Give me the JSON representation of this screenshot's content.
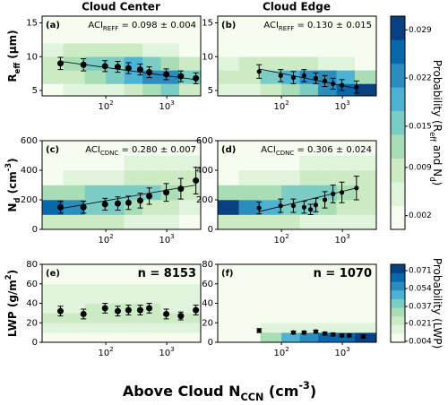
{
  "figure": {
    "column_titles": [
      "Cloud Center",
      "Cloud Edge"
    ],
    "xlabel": [
      "Above Cloud N",
      {
        "text": "CCN",
        "shift": "sub"
      },
      " (cm",
      {
        "text": "-3",
        "shift": "super"
      },
      ")"
    ],
    "colormap": [
      "#f7fcf0",
      "#e0f3db",
      "#ccebc5",
      "#a8ddb5",
      "#7bccc4",
      "#4eb3d3",
      "#2b8cbe",
      "#0868ac",
      "#084081"
    ]
  },
  "chart_data": [
    {
      "type": "binned_scatter",
      "label": "(a)",
      "annotation": [
        "ACI",
        {
          "text": "REFF",
          "shift": "sub"
        },
        " = 0.098 ± 0.004"
      ],
      "ylabel": [
        "R",
        {
          "text": "eff",
          "shift": "sub"
        },
        " (μm)"
      ],
      "xscale": "log",
      "xlim": [
        9,
        3600
      ],
      "xticks": [
        {
          "value": 100,
          "label": [
            "10",
            {
              "text": "2",
              "shift": "super"
            }
          ]
        },
        {
          "value": 1000,
          "label": [
            "10",
            {
              "text": "3",
              "shift": "super"
            }
          ]
        }
      ],
      "ylim": [
        4.2,
        16
      ],
      "yticks": [
        5,
        10,
        15
      ],
      "clim": [
        0,
        0.031
      ],
      "xbins": [
        9,
        20,
        45,
        100,
        200,
        400,
        800,
        1600,
        3600
      ],
      "ybins": [
        4.2,
        6,
        8,
        10,
        12,
        14,
        16
      ],
      "z": [
        [
          0.003,
          0.004,
          0.004,
          0.006,
          0.009,
          0.012,
          0.014,
          0.01
        ],
        [
          0.008,
          0.01,
          0.012,
          0.016,
          0.02,
          0.024,
          0.022,
          0.015
        ],
        [
          0.01,
          0.012,
          0.014,
          0.017,
          0.018,
          0.016,
          0.012,
          0.008
        ],
        [
          0.006,
          0.007,
          0.008,
          0.008,
          0.007,
          0.005,
          0.004,
          0.003
        ],
        [
          0.003,
          0.003,
          0.003,
          0.003,
          0.002,
          0.002,
          0.002,
          0.002
        ],
        [
          0.001,
          0.001,
          0.001,
          0.001,
          0.001,
          0.001,
          0.001,
          0.001
        ]
      ],
      "x": [
        18,
        43,
        97,
        157,
        235,
        366,
        515,
        980,
        1700,
        3000
      ],
      "values": [
        9.0,
        8.8,
        8.6,
        8.5,
        8.3,
        8.1,
        7.7,
        7.4,
        7.1,
        6.8
      ],
      "errors": [
        0.9,
        0.9,
        0.8,
        0.8,
        0.8,
        0.8,
        0.8,
        0.8,
        0.8,
        0.8
      ],
      "fit": {
        "x": [
          18,
          3000
        ],
        "y": [
          9.3,
          6.6
        ]
      }
    },
    {
      "type": "binned_scatter",
      "label": "(b)",
      "annotation": [
        "ACI",
        {
          "text": "REFF",
          "shift": "sub"
        },
        " = 0.130 ± 0.015"
      ],
      "xscale": "log",
      "xlim": [
        9,
        3600
      ],
      "xticks": [
        {
          "value": 100,
          "label": [
            "10",
            {
              "text": "2",
              "shift": "super"
            }
          ]
        },
        {
          "value": 1000,
          "label": [
            "10",
            {
              "text": "3",
              "shift": "super"
            }
          ]
        }
      ],
      "ylim": [
        4.2,
        16
      ],
      "yticks": [
        5,
        10,
        15
      ],
      "clim": [
        0,
        0.031
      ],
      "xbins": [
        9,
        20,
        45,
        100,
        200,
        400,
        800,
        1600,
        3600
      ],
      "ybins": [
        4.2,
        6,
        8,
        10,
        12,
        14,
        16
      ],
      "z": [
        [
          0.004,
          0.005,
          0.008,
          0.012,
          0.016,
          0.022,
          0.026,
          0.029
        ],
        [
          0.008,
          0.01,
          0.014,
          0.02,
          0.024,
          0.022,
          0.018,
          0.012
        ],
        [
          0.006,
          0.007,
          0.008,
          0.009,
          0.008,
          0.006,
          0.004,
          0.003
        ],
        [
          0.003,
          0.003,
          0.003,
          0.003,
          0.002,
          0.002,
          0.002,
          0.002
        ],
        [
          0.001,
          0.001,
          0.001,
          0.001,
          0.001,
          0.001,
          0.001,
          0.001
        ],
        [
          0.001,
          0.001,
          0.001,
          0.001,
          0.001,
          0.001,
          0.001,
          0.001
        ]
      ],
      "x": [
        43,
        97,
        157,
        235,
        366,
        515,
        700,
        980,
        1700
      ],
      "values": [
        7.8,
        7.2,
        6.9,
        7.2,
        6.8,
        6.4,
        6.0,
        5.8,
        5.5
      ],
      "errors": [
        1.0,
        0.9,
        0.9,
        0.9,
        0.8,
        0.8,
        0.8,
        0.8,
        0.9
      ],
      "fit": {
        "x": [
          43,
          1700
        ],
        "y": [
          8.2,
          5.3
        ]
      }
    },
    {
      "type": "binned_scatter",
      "label": "(c)",
      "annotation": [
        "ACI",
        {
          "text": "CDNC",
          "shift": "sub"
        },
        " = 0.280 ± 0.007"
      ],
      "ylabel": [
        "N",
        {
          "text": "d",
          "shift": "sub"
        },
        " (cm",
        {
          "text": "-3",
          "shift": "super"
        },
        ")"
      ],
      "xscale": "log",
      "xlim": [
        9,
        3600
      ],
      "xticks": [
        {
          "value": 100,
          "label": [
            "10",
            {
              "text": "2",
              "shift": "super"
            }
          ]
        },
        {
          "value": 1000,
          "label": [
            "10",
            {
              "text": "3",
              "shift": "super"
            }
          ]
        }
      ],
      "ylim": [
        0,
        600
      ],
      "yticks": [
        0,
        200,
        400,
        600
      ],
      "clim": [
        0,
        0.031
      ],
      "xbins": [
        9,
        20,
        45,
        100,
        200,
        400,
        800,
        1600,
        3600
      ],
      "ybins": [
        0,
        100,
        200,
        300,
        400,
        500,
        600
      ],
      "z": [
        [
          0.008,
          0.008,
          0.007,
          0.007,
          0.006,
          0.005,
          0.004,
          0.003
        ],
        [
          0.026,
          0.022,
          0.016,
          0.014,
          0.012,
          0.01,
          0.009,
          0.006
        ],
        [
          0.012,
          0.013,
          0.014,
          0.015,
          0.016,
          0.014,
          0.012,
          0.008
        ],
        [
          0.003,
          0.004,
          0.004,
          0.006,
          0.008,
          0.01,
          0.01,
          0.008
        ],
        [
          0.002,
          0.002,
          0.002,
          0.003,
          0.004,
          0.005,
          0.006,
          0.005
        ],
        [
          0.001,
          0.001,
          0.001,
          0.001,
          0.001,
          0.002,
          0.002,
          0.002
        ]
      ],
      "x": [
        18,
        43,
        97,
        157,
        235,
        366,
        515,
        980,
        1700,
        3000
      ],
      "values": [
        150,
        150,
        170,
        175,
        180,
        195,
        225,
        250,
        275,
        330
      ],
      "errors": [
        40,
        40,
        40,
        45,
        45,
        50,
        55,
        60,
        70,
        90
      ],
      "fit": {
        "x": [
          18,
          3000
        ],
        "y": [
          140,
          300
        ]
      }
    },
    {
      "type": "binned_scatter",
      "label": "(d)",
      "annotation": [
        "ACI",
        {
          "text": "CDNC",
          "shift": "sub"
        },
        " = 0.306 ± 0.024"
      ],
      "xscale": "log",
      "xlim": [
        9,
        3600
      ],
      "xticks": [
        {
          "value": 100,
          "label": [
            "10",
            {
              "text": "2",
              "shift": "super"
            }
          ]
        },
        {
          "value": 1000,
          "label": [
            "10",
            {
              "text": "3",
              "shift": "super"
            }
          ]
        }
      ],
      "ylim": [
        0,
        600
      ],
      "yticks": [
        0,
        200,
        400,
        600
      ],
      "clim": [
        0,
        0.031
      ],
      "xbins": [
        9,
        20,
        45,
        100,
        200,
        400,
        800,
        1600,
        3600
      ],
      "ybins": [
        0,
        100,
        200,
        300,
        400,
        500,
        600
      ],
      "z": [
        [
          0.01,
          0.008,
          0.008,
          0.007,
          0.006,
          0.006,
          0.005,
          0.004
        ],
        [
          0.029,
          0.024,
          0.018,
          0.016,
          0.014,
          0.013,
          0.01,
          0.008
        ],
        [
          0.012,
          0.012,
          0.013,
          0.014,
          0.015,
          0.014,
          0.012,
          0.01
        ],
        [
          0.003,
          0.004,
          0.005,
          0.006,
          0.008,
          0.01,
          0.01,
          0.009
        ],
        [
          0.002,
          0.002,
          0.002,
          0.003,
          0.004,
          0.005,
          0.006,
          0.006
        ],
        [
          0.001,
          0.001,
          0.001,
          0.001,
          0.001,
          0.002,
          0.002,
          0.002
        ]
      ],
      "x": [
        43,
        97,
        157,
        235,
        300,
        366,
        515,
        700,
        980,
        1700
      ],
      "values": [
        145,
        160,
        160,
        150,
        135,
        165,
        200,
        240,
        250,
        280
      ],
      "errors": [
        40,
        45,
        45,
        40,
        35,
        45,
        55,
        60,
        70,
        80
      ],
      "fit": {
        "x": [
          43,
          1700
        ],
        "y": [
          120,
          280
        ]
      }
    },
    {
      "type": "binned_scatter",
      "label": "(e)",
      "annotation": [
        "n = 8153"
      ],
      "ylabel": [
        "LWP (g/m",
        {
          "text": "2",
          "shift": "super"
        },
        ")"
      ],
      "xscale": "log",
      "xlim": [
        9,
        3600
      ],
      "xticks": [
        {
          "value": 100,
          "label": [
            "10",
            {
              "text": "2",
              "shift": "super"
            }
          ]
        },
        {
          "value": 1000,
          "label": [
            "10",
            {
              "text": "3",
              "shift": "super"
            }
          ]
        }
      ],
      "ylim": [
        0,
        80
      ],
      "yticks": [
        0,
        20,
        40,
        60,
        80
      ],
      "clim": [
        0.003,
        0.077
      ],
      "xbins": [
        9,
        20,
        45,
        100,
        200,
        400,
        800,
        1600,
        3600
      ],
      "ybins": [
        0,
        10,
        20,
        30,
        40,
        60,
        80
      ],
      "z": [
        [
          0.008,
          0.008,
          0.008,
          0.008,
          0.008,
          0.008,
          0.008,
          0.008
        ],
        [
          0.014,
          0.014,
          0.014,
          0.014,
          0.014,
          0.014,
          0.014,
          0.014
        ],
        [
          0.02,
          0.02,
          0.022,
          0.022,
          0.022,
          0.022,
          0.02,
          0.02
        ],
        [
          0.018,
          0.018,
          0.02,
          0.02,
          0.02,
          0.02,
          0.018,
          0.018
        ],
        [
          0.012,
          0.012,
          0.012,
          0.012,
          0.012,
          0.012,
          0.012,
          0.012
        ],
        [
          0.006,
          0.006,
          0.006,
          0.006,
          0.006,
          0.006,
          0.006,
          0.006
        ]
      ],
      "x": [
        18,
        43,
        97,
        157,
        235,
        366,
        515,
        980,
        1700,
        3000
      ],
      "values": [
        32,
        29,
        35,
        32,
        33,
        33,
        35,
        29,
        27,
        33
      ],
      "errors": [
        5,
        5,
        5,
        5,
        5,
        5,
        5,
        5,
        4,
        5
      ]
    },
    {
      "type": "binned_scatter",
      "label": "(f)",
      "annotation": [
        "n = 1070"
      ],
      "xscale": "log",
      "xlim": [
        9,
        3600
      ],
      "xticks": [
        {
          "value": 100,
          "label": [
            "10",
            {
              "text": "2",
              "shift": "super"
            }
          ]
        },
        {
          "value": 1000,
          "label": [
            "10",
            {
              "text": "3",
              "shift": "super"
            }
          ]
        }
      ],
      "ylim": [
        0,
        80
      ],
      "yticks": [
        0,
        20,
        40,
        60,
        80
      ],
      "clim": [
        0.003,
        0.077
      ],
      "xbins": [
        9,
        20,
        45,
        100,
        200,
        400,
        800,
        1600,
        3600
      ],
      "ybins": [
        0,
        10,
        20,
        30,
        40,
        60,
        80
      ],
      "z": [
        [
          0.004,
          0.004,
          0.03,
          0.045,
          0.055,
          0.062,
          0.068,
          0.071
        ],
        [
          0.004,
          0.004,
          0.012,
          0.014,
          0.015,
          0.014,
          0.013,
          0.012
        ],
        [
          0.003,
          0.003,
          0.003,
          0.003,
          0.003,
          0.003,
          0.003,
          0.003
        ],
        [
          0.003,
          0.003,
          0.003,
          0.003,
          0.003,
          0.003,
          0.003,
          0.003
        ],
        [
          0.003,
          0.003,
          0.003,
          0.003,
          0.003,
          0.003,
          0.003,
          0.003
        ],
        [
          0.003,
          0.003,
          0.003,
          0.003,
          0.003,
          0.003,
          0.003,
          0.003
        ]
      ],
      "x": [
        43,
        157,
        235,
        366,
        515,
        700,
        980,
        1300,
        2200
      ],
      "values": [
        12,
        10,
        10,
        11,
        9,
        8,
        7,
        7,
        6
      ],
      "errors": [
        2,
        1.5,
        1.5,
        1.5,
        1.5,
        1.5,
        1.5,
        1.5,
        1.5
      ]
    },
    {
      "type": "colorbar",
      "label": [
        "Probability (R",
        {
          "text": "eff",
          "shift": "sub"
        },
        " and N",
        {
          "text": "d",
          "shift": "sub"
        },
        ")"
      ],
      "clim": [
        0,
        0.031
      ],
      "ticks": [
        0.002,
        0.009,
        0.015,
        0.022,
        0.029
      ]
    },
    {
      "type": "colorbar",
      "label": [
        "Probability (LWP)"
      ],
      "clim": [
        0.003,
        0.077
      ],
      "ticks": [
        0.004,
        0.021,
        0.037,
        0.054,
        0.071
      ]
    }
  ]
}
